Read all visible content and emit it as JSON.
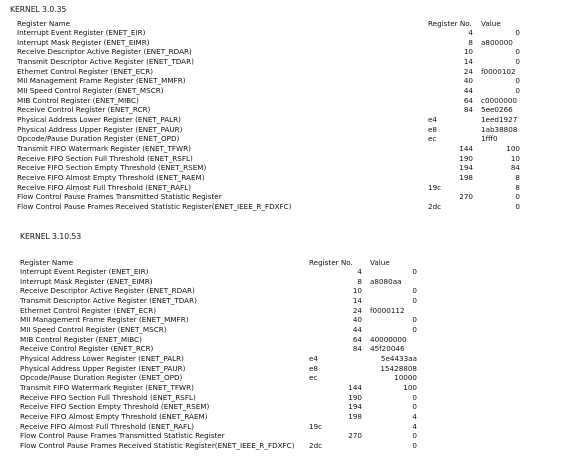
{
  "sections": [
    {
      "title": "KERNEL 3.0.35",
      "headers": [
        "Register Name",
        "Register No.",
        "Value"
      ],
      "rows": [
        [
          "Interrupt Event Register (ENET_EIR)",
          "4",
          "",
          "0"
        ],
        [
          "Interrupt Mask Register (ENET_EIMR)",
          "8",
          "a800000",
          ""
        ],
        [
          "Receive Descriptor Active Register (ENET_RDAR)",
          "10",
          "",
          "0"
        ],
        [
          "Transmit Descriptor Active Register (ENET_TDAR)",
          "14",
          "",
          "0"
        ],
        [
          "Ethernet Control Register (ENET_ECR)",
          "24",
          "f0000102",
          ""
        ],
        [
          "MII Management Frame Register (ENET_MMFR)",
          "40",
          "",
          "0"
        ],
        [
          "MII Speed Control Register (ENET_MSCR)",
          "44",
          "",
          "0"
        ],
        [
          "MIB Control Register (ENET_MIBC)",
          "64",
          "c0000000",
          ""
        ],
        [
          "Receive Control Register (ENET_RCR)",
          "84",
          "5ee0266",
          ""
        ],
        [
          "Physical Address Lower Register (ENET_PALR)",
          "e4",
          "1eed1927",
          ""
        ],
        [
          "Physical Address Upper Register (ENET_PAUR)",
          "e8",
          "1ab38808",
          ""
        ],
        [
          "Opcode/Pause Duration Register (ENET_OPD)",
          "ec",
          "1fff0",
          ""
        ],
        [
          "Transmit FIFO Watermark Register (ENET_TFWR)",
          "144",
          "",
          "100"
        ],
        [
          "Receive FIFO Section Full Threshold (ENET_RSFL)",
          "190",
          "",
          "10"
        ],
        [
          "Receive FIFO Section Empty Threshold (ENET_RSEM)",
          "194",
          "",
          "84"
        ],
        [
          "Receive FIFO Almost Empty Threshold (ENET_RAEM)",
          "198",
          "",
          "8"
        ],
        [
          "Receive FIFO Almost Full Threshold (ENET_RAFL)",
          "19c",
          "",
          "8"
        ],
        [
          "Flow Control Pause Frames Transmitted Statistic Register",
          "270",
          "",
          "0"
        ],
        [
          "Flow Control Pause Frames Received Statistic Register(ENET_IEEE_R_FDXFC)",
          "2dc",
          "",
          "0"
        ]
      ]
    },
    {
      "title": "KERNEL 3.10.53",
      "headers": [
        "Register Name",
        "Register No.",
        "Value"
      ],
      "rows": [
        [
          "Interrupt Event Register (ENET_EIR)",
          "4",
          "",
          "0"
        ],
        [
          "Interrupt Mask Register (ENET_EIMR)",
          "8",
          "a8080aa",
          ""
        ],
        [
          "Receive Descriptor Active Register (ENET_RDAR)",
          "10",
          "",
          "0"
        ],
        [
          "Transmit Descriptor Active Register (ENET_TDAR)",
          "14",
          "",
          "0"
        ],
        [
          "Ethernet Control Register (ENET_ECR)",
          "24",
          "f0000112",
          ""
        ],
        [
          "MII Management Frame Register (ENET_MMFR)",
          "40",
          "",
          "0"
        ],
        [
          "MII Speed Control Register (ENET_MSCR)",
          "44",
          "",
          "0"
        ],
        [
          "MIB Control Register (ENET_MIBC)",
          "64",
          "40000000",
          ""
        ],
        [
          "Receive Control Register (ENET_RCR)",
          "84",
          "45f20046",
          ""
        ],
        [
          "Physical Address Lower Register (ENET_PALR)",
          "e4",
          "5e4433aa",
          ""
        ],
        [
          "Physical Address Upper Register (ENET_PAUR)",
          "e8",
          "15428808",
          ""
        ],
        [
          "Opcode/Pause Duration Register (ENET_OPD)",
          "ec",
          "10000",
          ""
        ],
        [
          "Transmit FIFO Watermark Register (ENET_TFWR)",
          "144",
          "",
          "100"
        ],
        [
          "Receive FIFO Section Full Threshold (ENET_RSFL)",
          "190",
          "",
          "0"
        ],
        [
          "Receive FIFO Section Empty Threshold (ENET_RSEM)",
          "194",
          "",
          "0"
        ],
        [
          "Receive FIFO Almost Empty Threshold (ENET_RAEM)",
          "198",
          "",
          "4"
        ],
        [
          "Receive FIFO Almost Full Threshold (ENET_RAFL)",
          "19c",
          "",
          "4"
        ],
        [
          "Flow Control Pause Frames Transmitted Statistic Register",
          "270",
          "",
          "0"
        ],
        [
          "Flow Control Pause Frames Received Statistic Register(ENET_IEEE_R_FDXFC)",
          "2dc",
          "",
          "0"
        ]
      ]
    }
  ]
}
